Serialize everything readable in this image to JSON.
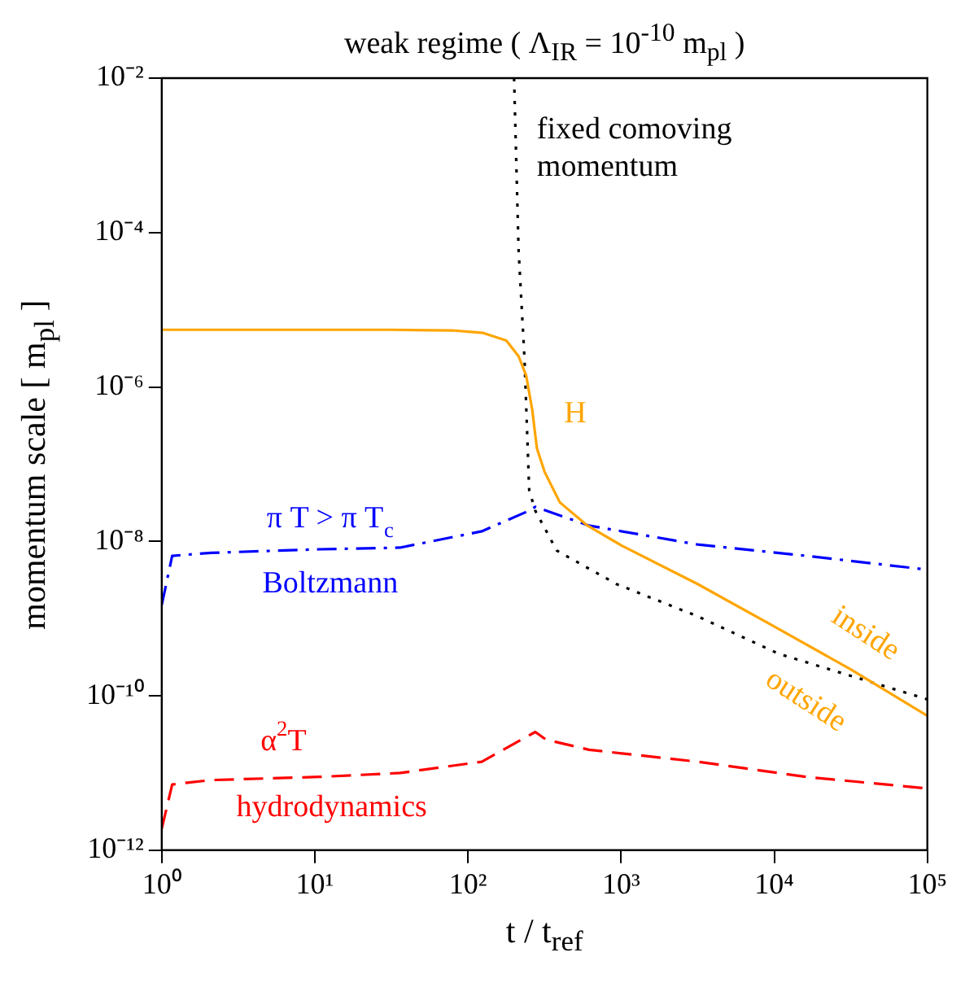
{
  "chart_data": {
    "type": "line",
    "title": "weak regime ( Λ$_{IR}$ = 10$^{-10}$ m$_{pl}$ )",
    "xlabel": "t / t$_{ref}$",
    "ylabel": "momentum scale [ m$_{pl}$ ]",
    "log": "xy",
    "grid": false,
    "legend": false,
    "marker": "none",
    "xlim": [
      1,
      100000
    ],
    "ylim": [
      1e-12,
      0.01
    ],
    "xticks": [
      {
        "value": 1,
        "label": "10⁰"
      },
      {
        "value": 10,
        "label": "10¹"
      },
      {
        "value": 100,
        "label": "10²"
      },
      {
        "value": 1000,
        "label": "10³"
      },
      {
        "value": 10000,
        "label": "10⁴"
      },
      {
        "value": 100000,
        "label": "10⁵"
      }
    ],
    "yticks": [
      {
        "value": 1e-12,
        "label": "10⁻¹²"
      },
      {
        "value": 1e-10,
        "label": "10⁻¹⁰"
      },
      {
        "value": 1e-08,
        "label": "10⁻⁸"
      },
      {
        "value": 1e-06,
        "label": "10⁻⁶"
      },
      {
        "value": 0.0001,
        "label": "10⁻⁴"
      },
      {
        "value": 0.01,
        "label": "10⁻²"
      }
    ],
    "series": [
      {
        "name": "H",
        "color": "#ffa500",
        "line_style": "solid",
        "x": [
          1,
          10,
          31.6,
          79,
          126,
          178,
          214,
          240,
          263,
          282,
          316,
          398,
          603,
          1000,
          3162,
          10000,
          31623,
          100000
        ],
        "values": [
          5.5e-06,
          5.5e-06,
          5.5e-06,
          5.4e-06,
          5e-06,
          4e-06,
          2.5e-06,
          1.4e-06,
          5e-07,
          1.6e-07,
          8e-08,
          3.2e-08,
          1.6e-08,
          8.9e-09,
          2.8e-09,
          7.9e-10,
          2.2e-10,
          5.5e-11
        ]
      },
      {
        "name": "fixed comoving momentum",
        "color": "#000000",
        "line_style": "dotted",
        "x": [
          200,
          214,
          234,
          251,
          275,
          380,
          933,
          3162,
          10700,
          100000
        ],
        "values": [
          0.01,
          6e-05,
          2.3e-06,
          4.6e-08,
          2.5e-08,
          7.6e-09,
          2.8e-09,
          1.07e-09,
          3.5e-10,
          9e-11
        ]
      },
      {
        "name": "π T > π T$_{c}$",
        "color": "#0000ff",
        "line_style": "dashdot",
        "x": [
          1,
          1.17,
          2.1,
          10.7,
          36,
          123,
          251,
          275,
          617,
          3162,
          16200,
          100000
        ],
        "values": [
          1.5e-09,
          6.5e-09,
          7.1e-09,
          7.9e-09,
          8.3e-09,
          1.35e-08,
          2.5e-08,
          2.8e-08,
          1.6e-08,
          9.1e-09,
          6.5e-09,
          4.3e-09
        ]
      },
      {
        "name": "α$^{2}$T",
        "color": "#ff0000",
        "line_style": "dashed",
        "x": [
          1,
          1.17,
          2.1,
          10.7,
          36,
          123,
          275,
          324,
          617,
          3162,
          16200,
          100000
        ],
        "values": [
          1.9e-12,
          7.1e-12,
          8.1e-12,
          8.9e-12,
          1e-11,
          1.4e-11,
          3.4e-11,
          2.7e-11,
          2e-11,
          1.4e-11,
          8.9e-12,
          6.3e-12
        ]
      }
    ],
    "annotations": [
      "Boltzmann",
      "hydrodynamics",
      "inside",
      "outside"
    ]
  }
}
